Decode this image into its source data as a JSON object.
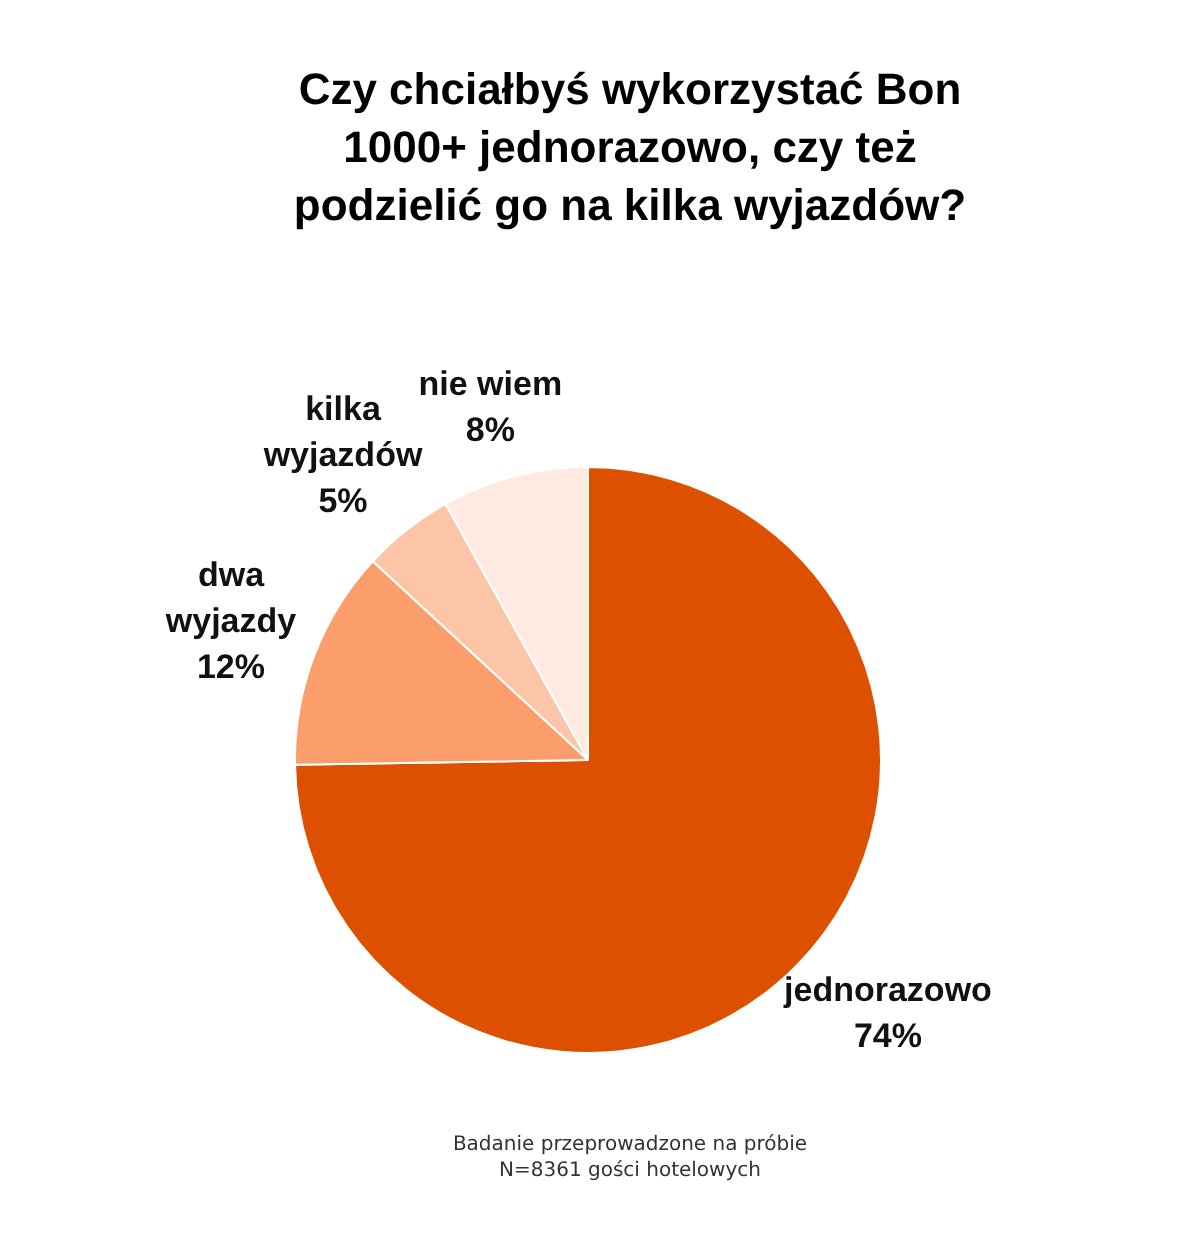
{
  "chart_data": {
    "type": "pie",
    "title": "Czy chciałbyś wykorzystać Bon 1000+ jednorazowo, czy też podzielić go na kilka wyjazdów?",
    "categories": [
      "jednorazowo",
      "dwa wyjazdy",
      "kilka wyjazdów",
      "nie wiem"
    ],
    "values": [
      74,
      12,
      5,
      8
    ],
    "value_labels": [
      "74%",
      "12%",
      "5%",
      "8%"
    ],
    "colors": [
      "#dd5000",
      "#fc9e6c",
      "#fdc5a8",
      "#feeae0"
    ],
    "annotations": [
      "Badanie przeprowadzone na próbie N=8361 gości hotelowych"
    ]
  }
}
